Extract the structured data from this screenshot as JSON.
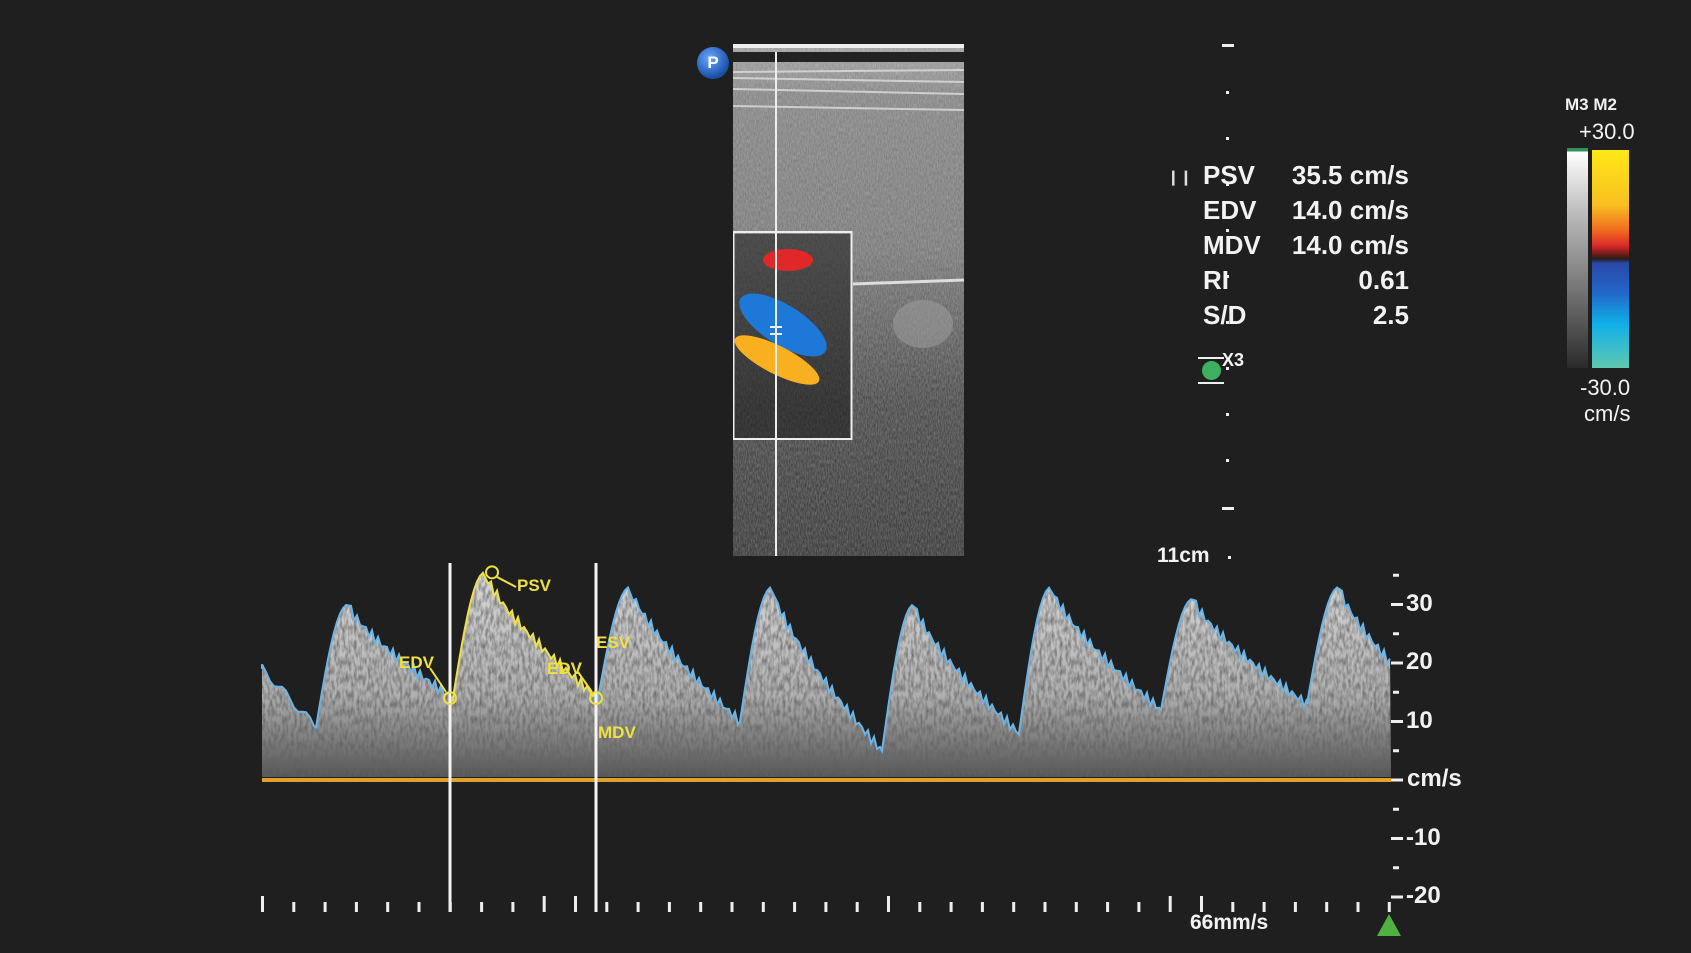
{
  "probe_badge": "P",
  "depth_label": "11cm",
  "focus_label": "X3",
  "measurements": [
    {
      "label": "PSV",
      "value": "35.5 cm/s"
    },
    {
      "label": "EDV",
      "value": "14.0 cm/s"
    },
    {
      "label": "MDV",
      "value": "14.0 cm/s"
    },
    {
      "label": "RI",
      "value": "0.61"
    },
    {
      "label": "S/D",
      "value": "2.5"
    }
  ],
  "color_bar": {
    "maps": "M3 M2",
    "max": "+30.0",
    "min": "-30.0",
    "unit": "cm/s"
  },
  "spectral": {
    "scale_labels": [
      "30",
      "20",
      "10",
      "cm/s",
      "-10",
      "-20"
    ],
    "scale_values": [
      30,
      20,
      10,
      0,
      -10,
      -20
    ],
    "sweep_speed": "66mm/s",
    "cycles": [
      {
        "trough": 9,
        "peak": 30
      },
      {
        "trough": 14,
        "peak": 35.5
      },
      {
        "trough": 14,
        "peak": 33
      },
      {
        "trough": 10,
        "peak": 33
      },
      {
        "trough": 5,
        "peak": 30
      },
      {
        "trough": 8,
        "peak": 33
      },
      {
        "trough": 12,
        "peak": 31
      },
      {
        "trough": 13,
        "peak": 33
      }
    ],
    "trace_labels": {
      "psv": "PSV",
      "edv": "EDV",
      "edv2": "EDV",
      "esv": "ESV",
      "mdv": "MDV"
    }
  },
  "colors": {
    "background": "#1f1f1f",
    "baseline": "#e0a030",
    "envelope": "#6ab4e6",
    "trace": "#f0e040",
    "focus": "#3cb060"
  }
}
